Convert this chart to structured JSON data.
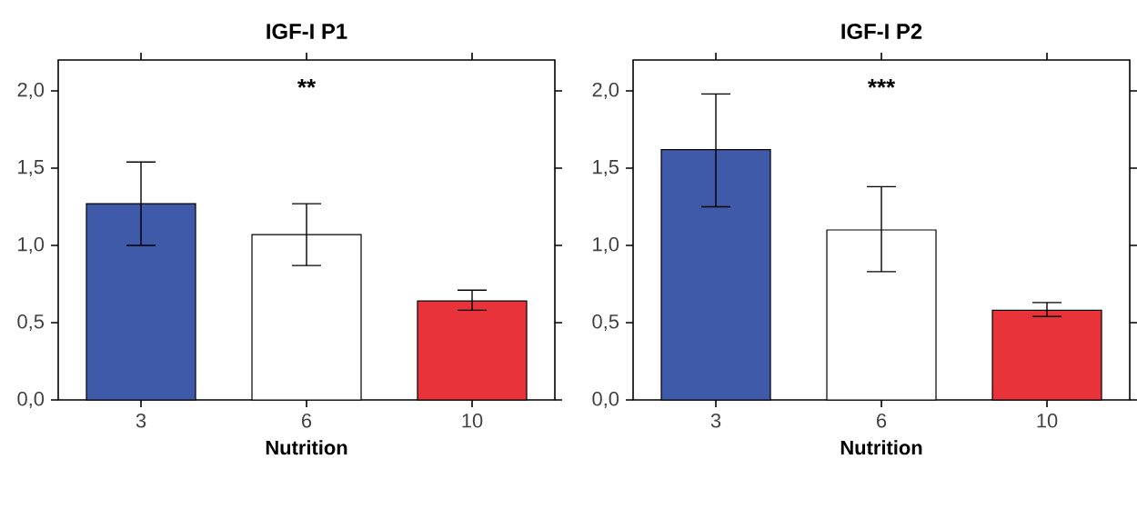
{
  "chart_data": [
    {
      "type": "bar",
      "title": "IGF-I P1",
      "xlabel": "Nutrition",
      "categories": [
        "3",
        "6",
        "10"
      ],
      "values": [
        1.27,
        1.07,
        0.64
      ],
      "colors": [
        "#3f5aa8",
        "#ffffff",
        "#e8333a"
      ],
      "errors": [
        [
          1.0,
          1.54
        ],
        [
          0.87,
          1.27
        ],
        [
          0.58,
          0.71
        ]
      ],
      "ylim": [
        0,
        2.2
      ],
      "yticks": [
        {
          "value": 0,
          "label": "0,0"
        },
        {
          "value": 0.5,
          "label": "0,5"
        },
        {
          "value": 1.0,
          "label": "1,0"
        },
        {
          "value": 1.5,
          "label": "1,5"
        },
        {
          "value": 2.0,
          "label": "2,0"
        }
      ],
      "annotations": [
        "**"
      ]
    },
    {
      "type": "bar",
      "title": "IGF-I P2",
      "xlabel": "Nutrition",
      "categories": [
        "3",
        "6",
        "10"
      ],
      "values": [
        1.62,
        1.1,
        0.58
      ],
      "colors": [
        "#3f5aa8",
        "#ffffff",
        "#e8333a"
      ],
      "errors": [
        [
          1.25,
          1.98
        ],
        [
          0.83,
          1.38
        ],
        [
          0.54,
          0.63
        ]
      ],
      "ylim": [
        0,
        2.2
      ],
      "yticks": [
        {
          "value": 0,
          "label": "0,0"
        },
        {
          "value": 0.5,
          "label": "0,5"
        },
        {
          "value": 1.0,
          "label": "1,0"
        },
        {
          "value": 1.5,
          "label": "1,5"
        },
        {
          "value": 2.0,
          "label": "2,0"
        }
      ],
      "annotations": [
        "***"
      ]
    }
  ]
}
